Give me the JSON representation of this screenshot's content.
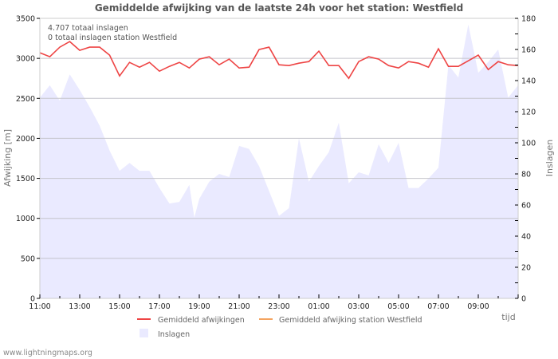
{
  "title": "Gemiddelde afwijking van de laatste 24h voor het station: Westfield",
  "annotations": [
    "4.707 totaal inslagen",
    "0 totaal inslagen station Westfield"
  ],
  "footer": "www.lightningmaps.org",
  "legend": {
    "items": [
      {
        "label": "Gemiddeld afwijkingen",
        "color": "#ee4444",
        "type": "line"
      },
      {
        "label": "Gemiddeld afwijking station Westfield",
        "color": "#f4a460",
        "type": "line"
      },
      {
        "label": "Inslagen",
        "color": "#eaeaff",
        "type": "area"
      }
    ]
  },
  "chart_data": {
    "type": "line",
    "title": "Gemiddelde afwijking van de laatste 24h voor het station: Westfield",
    "xlabel": "tijd",
    "ylabel": "Afwijking  [m]",
    "y2label": "Inslagen",
    "ylim": [
      0,
      3500
    ],
    "y2lim": [
      0,
      180
    ],
    "yticks": [
      0,
      500,
      1000,
      1500,
      2000,
      2500,
      3000,
      3500
    ],
    "y2ticks": [
      0,
      20,
      40,
      60,
      80,
      100,
      120,
      140,
      160,
      180
    ],
    "xticks": [
      "11:00",
      "13:00",
      "15:00",
      "17:00",
      "19:00",
      "21:00",
      "23:00",
      "01:00",
      "03:00",
      "05:00",
      "07:00",
      "09:00"
    ],
    "grid": true,
    "legend_position": "bottom",
    "series": [
      {
        "name": "Gemiddeld afwijkingen",
        "axis": "left",
        "color": "#ee4444",
        "x_hours": [
          0,
          0.5,
          1,
          1.5,
          2,
          2.5,
          3,
          3.5,
          4,
          4.5,
          5,
          5.5,
          6,
          6.5,
          7,
          7.5,
          8,
          8.5,
          9,
          9.5,
          10,
          10.5,
          11,
          11.5,
          12,
          12.5,
          13,
          13.5,
          14,
          14.5,
          15,
          15.5,
          16,
          16.5,
          17,
          17.5,
          18,
          18.5,
          19,
          19.5,
          20,
          20.5,
          21,
          21.5,
          22,
          22.5,
          23,
          23.5,
          24
        ],
        "values": [
          3070,
          3020,
          3140,
          3210,
          3100,
          3140,
          3140,
          3040,
          2780,
          2950,
          2890,
          2950,
          2840,
          2900,
          2950,
          2880,
          2990,
          3020,
          2920,
          2990,
          2880,
          2890,
          3110,
          3140,
          2920,
          2910,
          2940,
          2960,
          3090,
          2910,
          2910,
          2750,
          2960,
          3020,
          2990,
          2910,
          2880,
          2960,
          2940,
          2890,
          3120,
          2900,
          2900,
          2970,
          3040,
          2860,
          2960,
          2920,
          2910
        ]
      },
      {
        "name": "Gemiddeld afwijking station Westfield",
        "axis": "left",
        "color": "#f4a460",
        "x_hours": [],
        "values": []
      },
      {
        "name": "Inslagen",
        "axis": "right",
        "type": "area",
        "color": "#eaeaff",
        "x_hours": [
          0,
          0.5,
          1,
          1.5,
          2,
          2.5,
          3,
          3.5,
          4,
          4.5,
          5,
          5.5,
          6,
          6.5,
          7,
          7.5,
          7.75,
          8,
          8.5,
          9,
          9.5,
          10,
          10.5,
          11,
          11.5,
          12,
          12.5,
          13,
          13.5,
          14,
          14.5,
          15,
          15.5,
          16,
          16.5,
          17,
          17.5,
          18,
          18.5,
          19,
          19.5,
          20,
          20.5,
          21,
          21.5,
          22,
          22.5,
          23,
          23.5,
          24
        ],
        "values": [
          129,
          137,
          127,
          144,
          134,
          123,
          111,
          95,
          82,
          87,
          82,
          82,
          71,
          61,
          62,
          73,
          52,
          64,
          75,
          80,
          78,
          98,
          96,
          85,
          69,
          53,
          58,
          103,
          75,
          85,
          94,
          113,
          74,
          81,
          79,
          99,
          87,
          100,
          71,
          71,
          77,
          84,
          150,
          142,
          176,
          145,
          152,
          160,
          129,
          137
        ]
      }
    ]
  }
}
